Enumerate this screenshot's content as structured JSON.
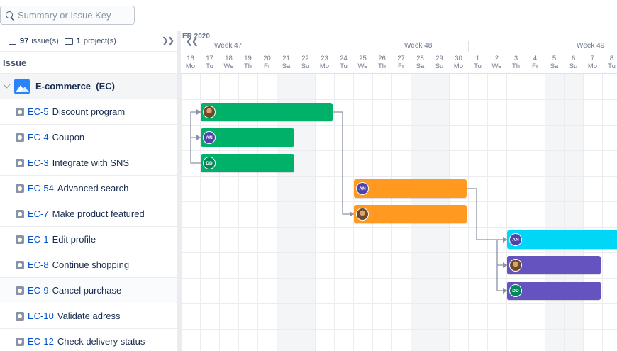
{
  "search": {
    "placeholder": "Summary or Issue Key"
  },
  "counts": {
    "issues_num": "97",
    "issues_label": "issue(s)",
    "projects_num": "1",
    "projects_label": "project(s)"
  },
  "column_header": "Issue",
  "project": {
    "name": "E-commerce",
    "key": "(EC)"
  },
  "issues": [
    {
      "key": "EC-5",
      "summary": "Discount program"
    },
    {
      "key": "EC-4",
      "summary": "Coupon"
    },
    {
      "key": "EC-3",
      "summary": "Integrate with SNS"
    },
    {
      "key": "EC-54",
      "summary": "Advanced search"
    },
    {
      "key": "EC-7",
      "summary": "Make product featured"
    },
    {
      "key": "EC-1",
      "summary": "Edit profile"
    },
    {
      "key": "EC-8",
      "summary": "Continue shopping"
    },
    {
      "key": "EC-9",
      "summary": "Cancel purchase"
    },
    {
      "key": "EC-10",
      "summary": "Validate adress"
    },
    {
      "key": "EC-12",
      "summary": "Check delivery status"
    }
  ],
  "timeline": {
    "month_label": "ER 2020",
    "weeks": [
      "Week 47",
      "Week 48",
      "Week 49"
    ],
    "days": [
      {
        "d": "16",
        "w": "Mo"
      },
      {
        "d": "17",
        "w": "Tu"
      },
      {
        "d": "18",
        "w": "We"
      },
      {
        "d": "19",
        "w": "Th"
      },
      {
        "d": "20",
        "w": "Fr"
      },
      {
        "d": "21",
        "w": "Sa"
      },
      {
        "d": "22",
        "w": "Su"
      },
      {
        "d": "23",
        "w": "Mo"
      },
      {
        "d": "24",
        "w": "Tu"
      },
      {
        "d": "25",
        "w": "We"
      },
      {
        "d": "26",
        "w": "Th"
      },
      {
        "d": "27",
        "w": "Fr"
      },
      {
        "d": "28",
        "w": "Sa"
      },
      {
        "d": "29",
        "w": "Su"
      },
      {
        "d": "30",
        "w": "Mo"
      },
      {
        "d": "1",
        "w": "Tu"
      },
      {
        "d": "2",
        "w": "We"
      },
      {
        "d": "3",
        "w": "Th"
      },
      {
        "d": "4",
        "w": "Fr"
      },
      {
        "d": "5",
        "w": "Sa"
      },
      {
        "d": "6",
        "w": "Su"
      },
      {
        "d": "7",
        "w": "Mo"
      },
      {
        "d": "8",
        "w": "Tu"
      }
    ]
  },
  "bars": [
    {
      "issue": "EC-5",
      "start": "17",
      "end": "23",
      "color": "#00b16a",
      "avatar": "photo",
      "avatar_color": "#5e6c84"
    },
    {
      "issue": "EC-4",
      "start": "17",
      "end": "21",
      "color": "#00b16a",
      "avatar": "AN",
      "avatar_color": "#5243aa"
    },
    {
      "issue": "EC-3",
      "start": "17",
      "end": "21",
      "color": "#00b16a",
      "avatar": "DD",
      "avatar_color": "#00875a"
    },
    {
      "issue": "EC-54",
      "start": "25",
      "end": "30",
      "color": "#ff991f",
      "avatar": "AN",
      "avatar_color": "#5243aa"
    },
    {
      "issue": "EC-7",
      "start": "25",
      "end": "30",
      "color": "#ff991f",
      "avatar": "photo",
      "avatar_color": "#5e6c84"
    },
    {
      "issue": "EC-1",
      "start": "3",
      "end": "8",
      "color": "#00d7f6",
      "avatar": "AN",
      "avatar_color": "#5243aa"
    },
    {
      "issue": "EC-8",
      "start": "3",
      "end": "7",
      "color": "#6554c0",
      "avatar": "photo",
      "avatar_color": "#5e6c84"
    },
    {
      "issue": "EC-9",
      "start": "3",
      "end": "7",
      "color": "#6554c0",
      "avatar": "DD",
      "avatar_color": "#00875a"
    }
  ],
  "colors": {
    "link": "#0052cc",
    "weekend": "#f4f5f7",
    "dependency": "#8993a4"
  }
}
